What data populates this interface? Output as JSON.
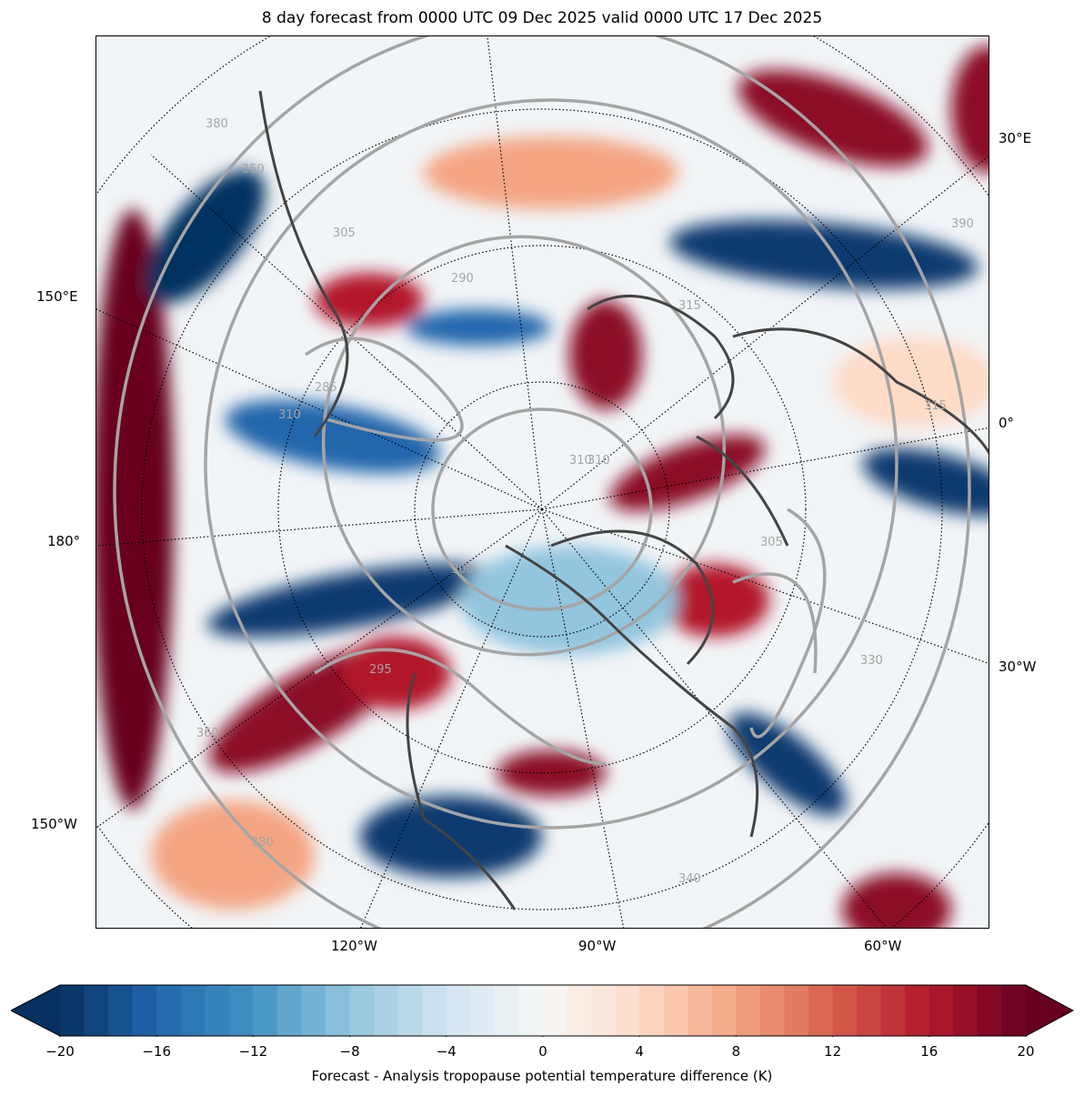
{
  "title": "8 day forecast from 0000 UTC 09 Dec 2025 valid 0000 UTC 17 Dec 2025",
  "map": {
    "projection": "north polar stereographic",
    "lon_labels_right": [
      "30°E",
      "0°",
      "30°W"
    ],
    "lon_labels_left": [
      "150°E",
      "180°",
      "150°W"
    ],
    "lon_labels_bottom": [
      "120°W",
      "90°W",
      "60°W"
    ],
    "contour_labels": [
      "380",
      "350",
      "305",
      "290",
      "310",
      "315",
      "285",
      "310",
      "295",
      "300",
      "305",
      "310",
      "330",
      "360",
      "380",
      "340",
      "390",
      "315"
    ]
  },
  "colorbar": {
    "label": "Forecast - Analysis tropopause potential temperature difference (K)",
    "min": -20,
    "max": 20,
    "step": 1,
    "ticks": [
      "−20",
      "−16",
      "−12",
      "−8",
      "−4",
      "0",
      "4",
      "8",
      "12",
      "16",
      "20"
    ],
    "colors": [
      "#053061",
      "#2166ac",
      "#4393c3",
      "#92c5de",
      "#d1e5f0",
      "#f7f7f7",
      "#fddbc7",
      "#f4a582",
      "#d6604d",
      "#b2182b",
      "#67001f"
    ]
  }
}
